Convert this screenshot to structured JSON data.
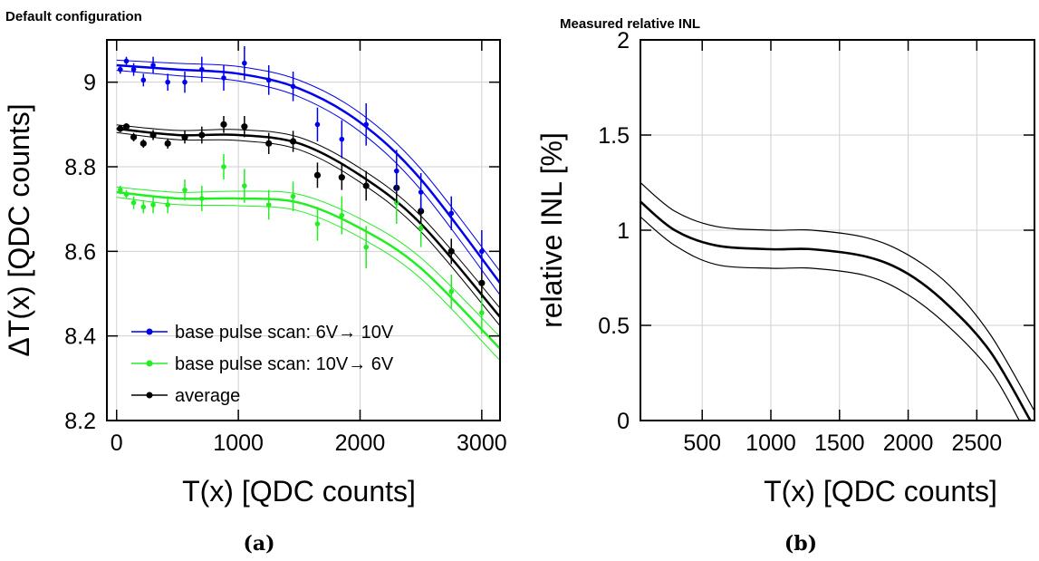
{
  "captions": [
    "(a)",
    "(b)"
  ],
  "colors": {
    "blue": "#0000ee",
    "green": "#22ee22",
    "black": "#000000",
    "grid": "#d0d0d0"
  },
  "chart_data": [
    {
      "type": "scatter",
      "title": "Default configuration",
      "xlabel": "T(x) [QDC counts]",
      "ylabel": "ΔT(x) [QDC counts]",
      "xlim": [
        -80,
        3150
      ],
      "ylim": [
        8.2,
        9.1
      ],
      "xticks": [
        0,
        1000,
        2000,
        3000
      ],
      "yticks": [
        8.2,
        8.4,
        8.6,
        8.8,
        9
      ],
      "grid": true,
      "legend_position": "bottom-left",
      "series": [
        {
          "name": "base pulse scan: 6V→ 10V",
          "color": "blue",
          "x": [
            30,
            80,
            140,
            220,
            300,
            420,
            560,
            700,
            880,
            1050,
            1250,
            1450,
            1650,
            1850,
            2050,
            2300,
            2500,
            2750,
            3000
          ],
          "y": [
            9.03,
            9.05,
            9.03,
            9.005,
            9.04,
            9.0,
            9.0,
            9.03,
            9.01,
            9.045,
            9.005,
            8.99,
            8.9,
            8.865,
            8.9,
            8.79,
            8.74,
            8.69,
            8.6
          ],
          "err": [
            0.01,
            0.01,
            0.015,
            0.015,
            0.02,
            0.02,
            0.025,
            0.03,
            0.03,
            0.04,
            0.035,
            0.035,
            0.04,
            0.045,
            0.05,
            0.05,
            0.045,
            0.04,
            0.05
          ],
          "fit": [
            [
              0,
              9.04
            ],
            [
              500,
              9.03
            ],
            [
              1000,
              9.02
            ],
            [
              1500,
              8.985
            ],
            [
              2000,
              8.905
            ],
            [
              2500,
              8.77
            ],
            [
              3150,
              8.525
            ]
          ],
          "band": 0.02
        },
        {
          "name": "base pulse scan: 10V→ 6V",
          "color": "green",
          "x": [
            30,
            80,
            140,
            220,
            300,
            420,
            560,
            700,
            880,
            1050,
            1250,
            1450,
            1650,
            1850,
            2050,
            2300,
            2500,
            2750,
            3000
          ],
          "y": [
            8.745,
            8.735,
            8.715,
            8.705,
            8.71,
            8.71,
            8.745,
            8.725,
            8.8,
            8.755,
            8.71,
            8.73,
            8.665,
            8.685,
            8.61,
            8.715,
            8.655,
            8.505,
            8.455
          ],
          "err": [
            0.01,
            0.01,
            0.015,
            0.015,
            0.02,
            0.02,
            0.025,
            0.03,
            0.03,
            0.04,
            0.035,
            0.035,
            0.04,
            0.045,
            0.05,
            0.05,
            0.045,
            0.04,
            0.05
          ],
          "fit": [
            [
              0,
              8.74
            ],
            [
              500,
              8.725
            ],
            [
              1000,
              8.725
            ],
            [
              1500,
              8.715
            ],
            [
              2000,
              8.655
            ],
            [
              2500,
              8.56
            ],
            [
              3150,
              8.37
            ]
          ],
          "band": 0.02
        },
        {
          "name": "average",
          "color": "black",
          "x": [
            30,
            80,
            140,
            220,
            300,
            420,
            560,
            700,
            880,
            1050,
            1250,
            1450,
            1650,
            1850,
            2050,
            2300,
            2500,
            2750,
            3000
          ],
          "y": [
            8.89,
            8.895,
            8.87,
            8.855,
            8.875,
            8.855,
            8.87,
            8.875,
            8.9,
            8.895,
            8.855,
            8.86,
            8.78,
            8.775,
            8.755,
            8.75,
            8.695,
            8.6,
            8.525
          ],
          "err": [
            0.008,
            0.008,
            0.01,
            0.01,
            0.012,
            0.012,
            0.015,
            0.02,
            0.02,
            0.025,
            0.025,
            0.025,
            0.03,
            0.03,
            0.035,
            0.035,
            0.03,
            0.03,
            0.035
          ],
          "fit": [
            [
              0,
              8.89
            ],
            [
              500,
              8.875
            ],
            [
              1000,
              8.875
            ],
            [
              1500,
              8.855
            ],
            [
              2000,
              8.78
            ],
            [
              2500,
              8.665
            ],
            [
              3150,
              8.445
            ]
          ],
          "band": 0.015
        }
      ]
    },
    {
      "type": "line",
      "title": "Measured relative INL",
      "xlabel": "T(x) [QDC counts]",
      "ylabel": "relative INL [%]",
      "xlim": [
        50,
        2920
      ],
      "ylim": [
        0,
        2
      ],
      "xticks": [
        500,
        1000,
        1500,
        2000,
        2500
      ],
      "yticks": [
        0,
        0.5,
        1,
        1.5,
        2
      ],
      "grid": true,
      "series": [
        {
          "role": "upper",
          "width": 1.2,
          "points": [
            [
              50,
              1.25
            ],
            [
              300,
              1.1
            ],
            [
              600,
              1.02
            ],
            [
              1000,
              1.0
            ],
            [
              1300,
              1.0
            ],
            [
              1700,
              0.96
            ],
            [
              2000,
              0.87
            ],
            [
              2300,
              0.71
            ],
            [
              2600,
              0.45
            ],
            [
              2920,
              0.05
            ]
          ]
        },
        {
          "role": "central",
          "width": 2.6,
          "points": [
            [
              50,
              1.15
            ],
            [
              300,
              1.0
            ],
            [
              600,
              0.92
            ],
            [
              1000,
              0.9
            ],
            [
              1300,
              0.9
            ],
            [
              1700,
              0.86
            ],
            [
              2000,
              0.77
            ],
            [
              2300,
              0.6
            ],
            [
              2600,
              0.36
            ],
            [
              2890,
              0.0
            ]
          ]
        },
        {
          "role": "lower",
          "width": 1.2,
          "points": [
            [
              50,
              1.07
            ],
            [
              300,
              0.92
            ],
            [
              600,
              0.82
            ],
            [
              1000,
              0.8
            ],
            [
              1300,
              0.8
            ],
            [
              1700,
              0.76
            ],
            [
              2000,
              0.66
            ],
            [
              2300,
              0.49
            ],
            [
              2600,
              0.26
            ],
            [
              2810,
              0.0
            ]
          ]
        }
      ]
    }
  ]
}
